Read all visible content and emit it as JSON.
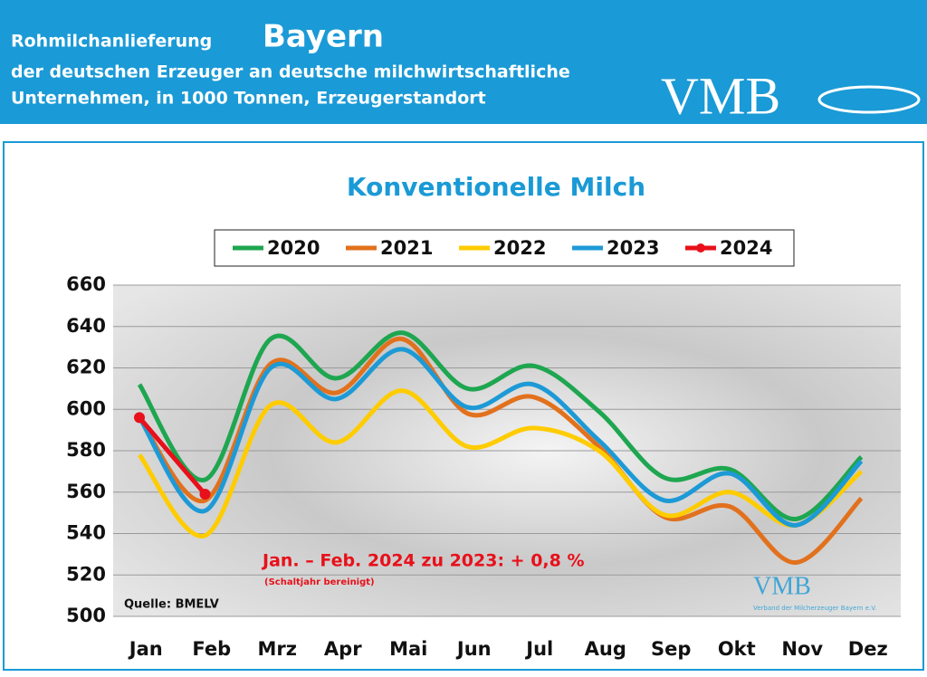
{
  "header": {
    "title": "Rohmilchanlieferung",
    "region": "Bayern",
    "line1": "der deutschen Erzeuger an deutsche milchwirtschaftliche",
    "line2": "Unternehmen, in 1000 Tonnen, Erzeugerstandort",
    "logo": "VMB"
  },
  "chart_data": {
    "type": "line",
    "title": "Konventionelle Milch",
    "categories": [
      "Jan",
      "Feb",
      "Mrz",
      "Apr",
      "Mai",
      "Jun",
      "Jul",
      "Aug",
      "Sep",
      "Okt",
      "Nov",
      "Dez"
    ],
    "series": [
      {
        "name": "2020",
        "color": "#1ea650",
        "values": [
          612,
          566,
          634,
          615,
          637,
          610,
          621,
          599,
          567,
          571,
          547,
          577
        ]
      },
      {
        "name": "2021",
        "color": "#e2711d",
        "values": [
          596,
          556,
          622,
          608,
          634,
          598,
          606,
          582,
          548,
          553,
          526,
          557
        ]
      },
      {
        "name": "2022",
        "color": "#ffcc00",
        "values": [
          578,
          539,
          602,
          584,
          609,
          582,
          591,
          580,
          549,
          560,
          544,
          570
        ]
      },
      {
        "name": "2023",
        "color": "#1d9ad6",
        "values": [
          596,
          551,
          620,
          605,
          629,
          601,
          612,
          585,
          556,
          569,
          544,
          575
        ]
      },
      {
        "name": "2024",
        "color": "#e8101a",
        "values": [
          596,
          559,
          null,
          null,
          null,
          null,
          null,
          null,
          null,
          null,
          null,
          null
        ]
      }
    ],
    "ylim": [
      500,
      660
    ],
    "yticks": [
      500,
      520,
      540,
      560,
      580,
      600,
      620,
      640,
      660
    ],
    "grid": true,
    "annotation": "Jan. – Feb. 2024 zu 2023: + 0,8 %",
    "annotation_note": "(Schaltjahr bereinigt)",
    "source": "Quelle: BMELV",
    "watermark": "VMB",
    "watermark_note": "Verband der Milcherzeuger Bayern e.V."
  }
}
